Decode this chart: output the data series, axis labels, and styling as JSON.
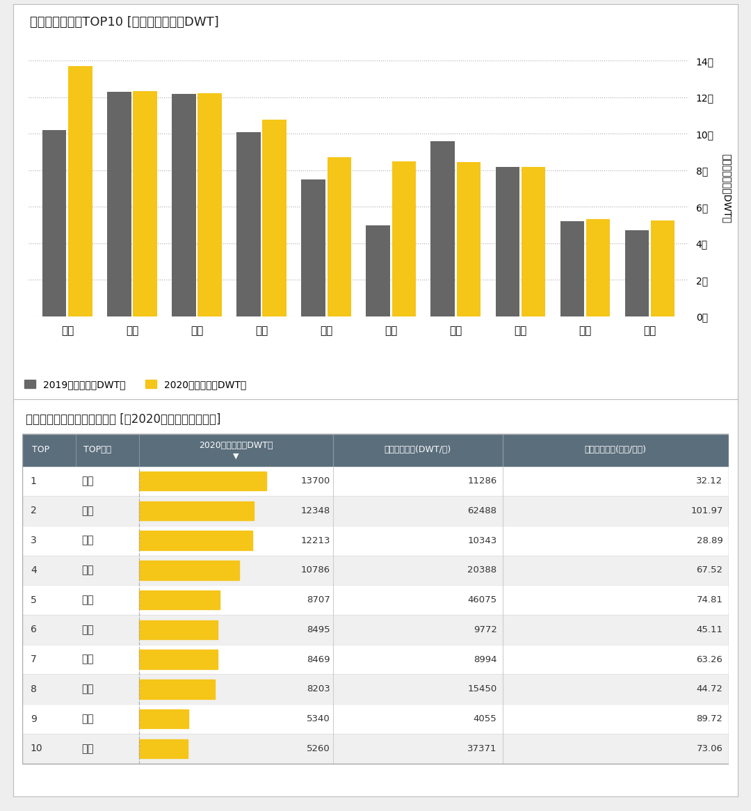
{
  "chart_title": "国内液散货港口TOP10 [挂靠载重吨，万DWT]",
  "table_title": "国内液散货十大港口数据概览 [按2020年挂靠载重吨降序]",
  "ports": [
    "舟山",
    "青岛",
    "宁波",
    "大连",
    "日照",
    "上海",
    "天津",
    "惠州",
    "南京",
    "湛江"
  ],
  "data_2019": [
    10200,
    12300,
    12200,
    10100,
    7500,
    5000,
    9600,
    8200,
    5200,
    4700
  ],
  "data_2020": [
    13700,
    12348,
    12213,
    10786,
    8707,
    8495,
    8469,
    8203,
    5340,
    5260
  ],
  "bar_color_2019": "#666666",
  "bar_color_2020": "#F5C518",
  "ymax": 14000,
  "yticks": [
    0,
    2000,
    4000,
    6000,
    8000,
    10000,
    12000,
    14000
  ],
  "ytick_labels": [
    "0千",
    "2千",
    "4千",
    "6千",
    "8千",
    "10千",
    "12千",
    "14千"
  ],
  "ylabel": "挂靠载重吨（万DWT）",
  "legend_2019": "2019年挂靠（万DWT）",
  "legend_2020": "2020年挂靠（万DWT）",
  "bg_color": "#eeeeee",
  "chart_bg": "#ffffff",
  "table_header_bg": "#5b6e7c",
  "table_header_fg": "#ffffff",
  "table_odd_bg": "#ffffff",
  "table_even_bg": "#f0f0f0",
  "table_bar_color": "#F5C518",
  "col_headers": [
    "TOP",
    "TOP港口",
    "2020年挂靠（万DWT）",
    "平均挂靠吨位(DWT/次)",
    "平均在港时间(小时/船次)"
  ],
  "table_data": [
    [
      1,
      "舟山",
      13700,
      11286,
      32.12
    ],
    [
      2,
      "青岛",
      12348,
      62488,
      101.97
    ],
    [
      3,
      "宁波",
      12213,
      10343,
      28.89
    ],
    [
      4,
      "大连",
      10786,
      20388,
      67.52
    ],
    [
      5,
      "日照",
      8707,
      46075,
      74.81
    ],
    [
      6,
      "上海",
      8495,
      9772,
      45.11
    ],
    [
      7,
      "天津",
      8469,
      8994,
      63.26
    ],
    [
      8,
      "惠州",
      8203,
      15450,
      44.72
    ],
    [
      9,
      "南京",
      5340,
      4055,
      89.72
    ],
    [
      10,
      "湛江",
      5260,
      37371,
      73.06
    ]
  ]
}
